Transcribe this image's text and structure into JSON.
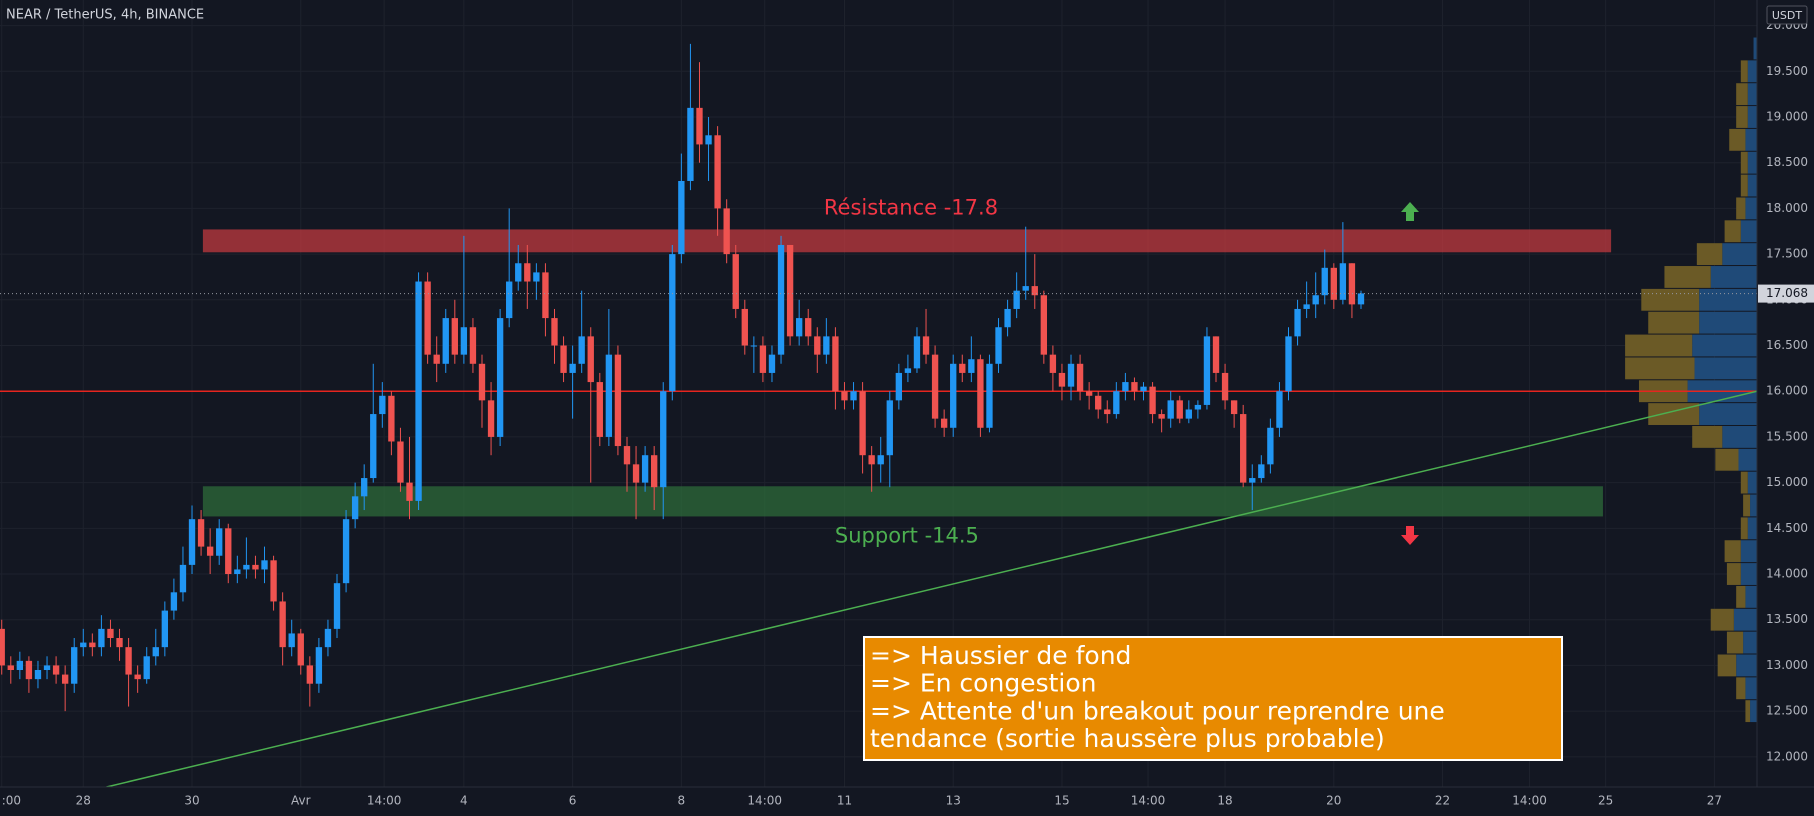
{
  "chart_data": {
    "type": "candlestick",
    "title": "NEAR / TetherUS, 4h, BINANCE",
    "currency": "USDT",
    "up_color": "#2196f3",
    "down_color": "#ef5350",
    "grid": true,
    "xlim": [
      -0.19,
      193.7
    ],
    "ylim": [
      11.67,
      20.28
    ],
    "xticks": [
      {
        "value": 0,
        "label": ":00"
      },
      {
        "value": 9,
        "label": "28"
      },
      {
        "value": 21,
        "label": "30"
      },
      {
        "value": 33,
        "label": "Avr"
      },
      {
        "value": 42.2,
        "label": "14:00"
      },
      {
        "value": 51,
        "label": "4"
      },
      {
        "value": 63,
        "label": "6"
      },
      {
        "value": 75,
        "label": "8"
      },
      {
        "value": 84.2,
        "label": "14:00"
      },
      {
        "value": 93,
        "label": "11"
      },
      {
        "value": 105,
        "label": "13"
      },
      {
        "value": 117,
        "label": "15"
      },
      {
        "value": 126.5,
        "label": "14:00"
      },
      {
        "value": 135,
        "label": "18"
      },
      {
        "value": 147,
        "label": "20"
      },
      {
        "value": 159,
        "label": "22"
      },
      {
        "value": 168.6,
        "label": "14:00"
      },
      {
        "value": 177,
        "label": "25"
      },
      {
        "value": 189,
        "label": "27"
      }
    ],
    "yticks": [
      {
        "value": 12,
        "label": "12.000"
      },
      {
        "value": 12.5,
        "label": "12.500"
      },
      {
        "value": 13,
        "label": "13.000"
      },
      {
        "value": 13.5,
        "label": "13.500"
      },
      {
        "value": 14,
        "label": "14.000"
      },
      {
        "value": 14.5,
        "label": "14.500"
      },
      {
        "value": 15,
        "label": "15.000"
      },
      {
        "value": 15.5,
        "label": "15.500"
      },
      {
        "value": 16,
        "label": "16.000"
      },
      {
        "value": 16.5,
        "label": "16.500"
      },
      {
        "value": 17,
        "label": "17.000"
      },
      {
        "value": 17.5,
        "label": "17.500"
      },
      {
        "value": 18,
        "label": "18.000"
      },
      {
        "value": 18.5,
        "label": "18.500"
      },
      {
        "value": 19,
        "label": "19.000"
      },
      {
        "value": 19.5,
        "label": "19.500"
      },
      {
        "value": 20,
        "label": "20.000"
      }
    ],
    "open": [
      13.4,
      13.0,
      12.95,
      13.05,
      12.85,
      12.95,
      13.0,
      12.9,
      12.8,
      13.2,
      13.25,
      13.2,
      13.4,
      13.3,
      13.2,
      12.9,
      12.85,
      13.1,
      13.2,
      13.6,
      13.8,
      14.1,
      14.6,
      14.3,
      14.2,
      14.5,
      14.0,
      14.05,
      14.1,
      14.05,
      14.15,
      13.7,
      13.2,
      13.35,
      13.0,
      12.8,
      13.2,
      13.4,
      13.9,
      14.6,
      14.85,
      15.05,
      15.75,
      15.95,
      15.45,
      15.0,
      14.8,
      17.2,
      16.4,
      16.3,
      16.8,
      16.4,
      16.7,
      16.3,
      15.9,
      15.5,
      16.8,
      17.2,
      17.4,
      17.2,
      17.3,
      16.8,
      16.5,
      16.2,
      16.3,
      16.6,
      16.1,
      15.5,
      16.4,
      15.4,
      15.2,
      15.0,
      15.3,
      14.95,
      16.0,
      17.5,
      18.3,
      19.1,
      18.7,
      18.8,
      18.0,
      17.5,
      16.9,
      16.5,
      16.5,
      16.2,
      16.4,
      17.6,
      16.6,
      16.8,
      16.6,
      16.4,
      16.6,
      16.0,
      15.9,
      16.0,
      15.3,
      15.2,
      15.3,
      15.9,
      16.2,
      16.25,
      16.6,
      16.4,
      15.7,
      15.6,
      16.3,
      16.2,
      16.35,
      15.6,
      16.3,
      16.7,
      16.9,
      17.1,
      17.15,
      17.05,
      16.4,
      16.2,
      16.05,
      16.3,
      16.0,
      15.95,
      15.8,
      15.75,
      16.0,
      16.1,
      16.0,
      16.05,
      15.75,
      15.7,
      15.9,
      15.7,
      15.8,
      15.85,
      16.6,
      16.2,
      15.9,
      15.75,
      15.0,
      15.05,
      15.2,
      15.6,
      16.0,
      16.6,
      16.9,
      16.95,
      17.05,
      17.35,
      17.0,
      17.4,
      16.95
    ],
    "high": [
      13.5,
      13.1,
      13.15,
      13.1,
      13.05,
      13.1,
      13.1,
      13.0,
      13.3,
      13.4,
      13.35,
      13.55,
      13.5,
      13.4,
      13.3,
      13.0,
      13.2,
      13.4,
      13.7,
      13.95,
      14.3,
      14.75,
      14.7,
      14.5,
      14.6,
      14.55,
      14.2,
      14.4,
      14.2,
      14.3,
      14.2,
      13.8,
      13.5,
      13.4,
      13.1,
      13.3,
      13.5,
      14.0,
      14.7,
      15.0,
      15.2,
      16.3,
      16.1,
      16.0,
      15.6,
      15.5,
      17.3,
      17.3,
      16.6,
      16.9,
      17.0,
      17.7,
      16.8,
      16.4,
      16.1,
      16.9,
      18.0,
      17.6,
      17.6,
      17.4,
      17.4,
      16.9,
      16.6,
      16.5,
      17.1,
      16.7,
      16.2,
      16.9,
      16.5,
      15.5,
      15.4,
      15.4,
      15.4,
      16.1,
      17.6,
      18.6,
      19.8,
      19.6,
      19.0,
      18.9,
      18.1,
      17.6,
      17.0,
      16.6,
      16.6,
      16.5,
      17.7,
      17.6,
      17.0,
      16.9,
      16.7,
      16.8,
      16.7,
      16.1,
      16.1,
      16.1,
      15.4,
      15.5,
      16.0,
      16.3,
      16.4,
      16.7,
      16.9,
      16.5,
      15.8,
      16.4,
      16.4,
      16.6,
      16.4,
      16.4,
      16.8,
      17.0,
      17.3,
      17.8,
      17.5,
      17.1,
      16.5,
      16.3,
      16.4,
      16.4,
      16.1,
      16.0,
      15.9,
      16.1,
      16.2,
      16.15,
      16.1,
      16.1,
      15.8,
      16.0,
      15.95,
      15.9,
      15.9,
      16.7,
      16.6,
      16.3,
      15.9,
      15.85,
      15.2,
      15.3,
      15.7,
      16.1,
      16.7,
      17.0,
      17.2,
      17.3,
      17.55,
      17.4,
      17.85,
      17.4,
      17.1
    ],
    "low": [
      12.9,
      12.8,
      12.85,
      12.7,
      12.75,
      12.85,
      12.8,
      12.5,
      12.7,
      13.1,
      13.1,
      13.1,
      13.2,
      13.05,
      12.55,
      12.7,
      12.8,
      13.0,
      13.1,
      13.5,
      13.7,
      14.0,
      14.2,
      14.0,
      14.1,
      13.9,
      13.9,
      13.95,
      13.95,
      13.9,
      13.6,
      13.0,
      13.1,
      12.9,
      12.55,
      12.7,
      13.1,
      13.3,
      13.8,
      14.5,
      14.7,
      15.0,
      15.6,
      15.3,
      14.9,
      14.6,
      14.7,
      16.3,
      16.1,
      16.2,
      16.3,
      16.3,
      16.2,
      15.6,
      15.3,
      15.4,
      16.7,
      17.1,
      16.9,
      17.0,
      16.6,
      16.3,
      16.1,
      15.7,
      16.2,
      15.0,
      15.4,
      15.4,
      15.3,
      14.9,
      14.6,
      14.9,
      14.7,
      14.6,
      15.9,
      17.4,
      18.2,
      18.5,
      18.3,
      17.7,
      17.4,
      16.8,
      16.4,
      16.2,
      16.1,
      16.1,
      16.3,
      16.5,
      16.5,
      16.5,
      16.2,
      16.3,
      15.8,
      15.8,
      15.8,
      15.1,
      14.9,
      15.0,
      14.95,
      15.8,
      16.1,
      16.2,
      16.3,
      15.6,
      15.5,
      15.5,
      16.1,
      16.1,
      15.5,
      15.55,
      16.2,
      16.6,
      16.8,
      17.0,
      16.9,
      16.3,
      16.0,
      15.9,
      15.9,
      15.9,
      15.8,
      15.7,
      15.65,
      15.7,
      15.9,
      15.9,
      15.9,
      15.65,
      15.55,
      15.6,
      15.65,
      15.65,
      15.7,
      15.8,
      16.1,
      15.8,
      15.6,
      14.95,
      14.7,
      15.0,
      15.1,
      15.5,
      15.9,
      16.5,
      16.8,
      16.8,
      16.95,
      16.9,
      16.95,
      16.8,
      16.9
    ],
    "close": [
      13.0,
      12.95,
      13.05,
      12.85,
      12.95,
      13.0,
      12.9,
      12.8,
      13.2,
      13.25,
      13.2,
      13.4,
      13.3,
      13.2,
      12.9,
      12.85,
      13.1,
      13.2,
      13.6,
      13.8,
      14.1,
      14.6,
      14.3,
      14.2,
      14.5,
      14.0,
      14.05,
      14.1,
      14.05,
      14.15,
      13.7,
      13.2,
      13.35,
      13.0,
      12.8,
      13.2,
      13.4,
      13.9,
      14.6,
      14.85,
      15.05,
      15.75,
      15.95,
      15.45,
      15.0,
      14.8,
      17.2,
      16.4,
      16.3,
      16.8,
      16.4,
      16.7,
      16.3,
      15.9,
      15.5,
      16.8,
      17.2,
      17.4,
      17.2,
      17.3,
      16.8,
      16.5,
      16.2,
      16.3,
      16.6,
      16.1,
      15.5,
      16.4,
      15.4,
      15.2,
      15.0,
      15.3,
      14.95,
      16.0,
      17.5,
      18.3,
      19.1,
      18.7,
      18.8,
      18.0,
      17.5,
      16.9,
      16.5,
      16.5,
      16.2,
      16.4,
      17.6,
      16.6,
      16.8,
      16.6,
      16.4,
      16.6,
      16.0,
      15.9,
      16.0,
      15.3,
      15.2,
      15.3,
      15.9,
      16.2,
      16.25,
      16.6,
      16.4,
      15.7,
      15.6,
      16.3,
      16.2,
      16.35,
      15.6,
      16.3,
      16.7,
      16.9,
      17.1,
      17.15,
      17.05,
      16.4,
      16.2,
      16.05,
      16.3,
      16.0,
      15.95,
      15.8,
      15.75,
      16.0,
      16.1,
      16.0,
      16.05,
      15.75,
      15.7,
      15.9,
      15.7,
      15.8,
      15.85,
      16.6,
      16.2,
      15.9,
      15.75,
      15.0,
      15.05,
      15.2,
      15.6,
      16.0,
      16.6,
      16.9,
      16.95,
      17.05,
      17.35,
      17.0,
      17.4,
      16.95,
      17.07
    ],
    "last_price": {
      "value": 17.068,
      "label": "17.068"
    },
    "zones": [
      {
        "label": "Résistance -17.8",
        "color": "#c0393f",
        "label_color": "#f23645",
        "from": 22.2,
        "to": 177.6,
        "bottom": 17.52,
        "top": 17.77
      },
      {
        "label": "Support -14.5",
        "color": "#2e6b3a",
        "label_color": "#4caf50",
        "from": 22.2,
        "to": 176.7,
        "bottom": 14.63,
        "top": 14.96
      }
    ],
    "level_line": {
      "value": 16.0,
      "color": "#e5251f"
    },
    "trendline": {
      "color": "#4caf50",
      "start": [
        11.56,
        11.67
      ],
      "end": [
        193.7,
        16.0
      ]
    },
    "info_box": [
      "=> Haussier de fond",
      "=> En congestion",
      "=> Attente d'un breakout pour reprendre une",
      "tendance (sortie haussère plus probable)"
    ],
    "volume_profile": {
      "up_color": "#1f4a78",
      "down_color": "#6b5a26",
      "row": 0.25,
      "levels": [
        19.75,
        19.5,
        19.25,
        19.0,
        18.75,
        18.5,
        18.25,
        18.0,
        17.75,
        17.5,
        17.25,
        17.0,
        16.75,
        16.5,
        16.25,
        16.0,
        15.75,
        15.5,
        15.25,
        15.0,
        14.75,
        14.5,
        14.25,
        14.0,
        13.75,
        13.5,
        13.25,
        13.0,
        12.75,
        12.5
      ],
      "up": [
        3,
        8,
        8,
        8,
        10,
        8,
        8,
        10,
        14,
        30,
        40,
        50,
        50,
        56,
        54,
        60,
        50,
        30,
        16,
        8,
        6,
        8,
        14,
        14,
        10,
        20,
        12,
        18,
        10,
        6
      ],
      "down": [
        0,
        6,
        10,
        10,
        14,
        6,
        6,
        8,
        14,
        22,
        40,
        50,
        44,
        58,
        60,
        42,
        44,
        26,
        20,
        6,
        6,
        6,
        14,
        12,
        8,
        20,
        14,
        16,
        8,
        4
      ]
    }
  }
}
